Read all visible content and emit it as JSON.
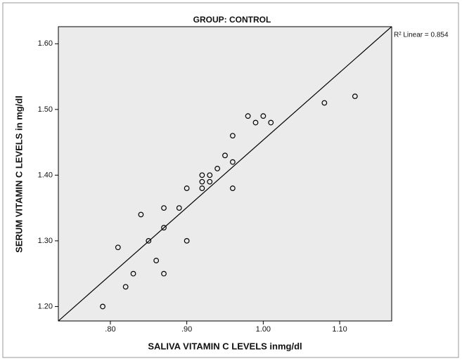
{
  "chart_data": {
    "type": "scatter",
    "title": "GROUP: CONTROL",
    "x_label": "SALIVA VITAMIN C LEVELS inmg/dl",
    "y_label": "SERUM VITAMIN C LEVELS in mg/dl",
    "annotation": "R² Linear = 0.854",
    "x": [
      0.79,
      0.81,
      0.82,
      0.83,
      0.84,
      0.85,
      0.86,
      0.87,
      0.87,
      0.87,
      0.89,
      0.9,
      0.9,
      0.92,
      0.92,
      0.92,
      0.93,
      0.93,
      0.94,
      0.95,
      0.96,
      0.96,
      0.96,
      0.98,
      0.99,
      1.0,
      1.01,
      1.08,
      1.12
    ],
    "values": [
      1.2,
      1.29,
      1.23,
      1.25,
      1.34,
      1.3,
      1.27,
      1.35,
      1.32,
      1.25,
      1.35,
      1.38,
      1.3,
      1.4,
      1.39,
      1.38,
      1.4,
      1.39,
      1.41,
      1.43,
      1.46,
      1.42,
      1.38,
      1.49,
      1.48,
      1.49,
      1.48,
      1.51,
      1.52
    ],
    "color": "#000000",
    "trendline": {
      "slope": 1.028,
      "intercept": 0.4255
    },
    "xlim": [
      0.732,
      1.168
    ],
    "ylim": [
      1.178,
      1.626
    ],
    "xticks": [
      {
        "value": 0.8,
        "label": ".80"
      },
      {
        "value": 0.9,
        "label": ".90"
      },
      {
        "value": 1.0,
        "label": "1.00"
      },
      {
        "value": 1.1,
        "label": "1.10"
      }
    ],
    "yticks": [
      {
        "value": 1.2,
        "label": "1.20"
      },
      {
        "value": 1.3,
        "label": "1.30"
      },
      {
        "value": 1.4,
        "label": "1.40"
      },
      {
        "value": 1.5,
        "label": "1.50"
      },
      {
        "value": 1.6,
        "label": "1.60"
      }
    ],
    "grid": false
  }
}
